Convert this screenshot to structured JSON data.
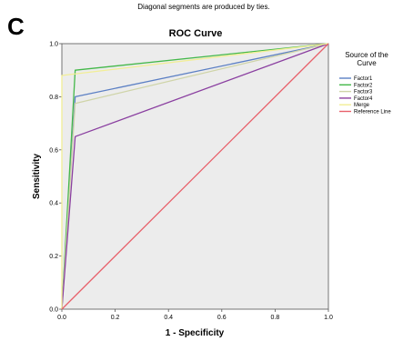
{
  "figure": {
    "panel_letter": "C",
    "subtitle": "Diagonal segments are produced by ties."
  },
  "chart_data": {
    "type": "line",
    "title": "ROC Curve",
    "xlabel": "1 - Specificity",
    "ylabel": "Sensitivity",
    "xlim": [
      0,
      1
    ],
    "ylim": [
      0,
      1
    ],
    "xticks": [
      "0.0",
      "0.2",
      "0.4",
      "0.6",
      "0.8",
      "1.0"
    ],
    "yticks": [
      "0.0",
      "0.2",
      "0.4",
      "0.6",
      "0.8",
      "1.0"
    ],
    "grid": false,
    "background": "#ececec",
    "legend": {
      "title_lines": [
        "Source of the",
        "Curve"
      ],
      "position": "right"
    },
    "series": [
      {
        "name": "Factor1",
        "color": "#5b7fc4",
        "x": [
          0,
          0.05,
          1
        ],
        "y": [
          0,
          0.8,
          1
        ]
      },
      {
        "name": "Factor2",
        "color": "#44b84a",
        "x": [
          0,
          0.05,
          1
        ],
        "y": [
          0,
          0.9,
          1
        ]
      },
      {
        "name": "Factor3",
        "color": "#cfd4a8",
        "x": [
          0,
          0.05,
          1
        ],
        "y": [
          0,
          0.775,
          1
        ]
      },
      {
        "name": "Factor4",
        "color": "#8a3fa0",
        "x": [
          0,
          0.05,
          1
        ],
        "y": [
          0,
          0.65,
          1
        ]
      },
      {
        "name": "Merge",
        "color": "#f2ee96",
        "x": [
          0,
          0,
          1
        ],
        "y": [
          0,
          0.88,
          1
        ]
      },
      {
        "name": "Reference Line",
        "color": "#e8606a",
        "x": [
          0,
          1
        ],
        "y": [
          0,
          1
        ]
      }
    ]
  }
}
